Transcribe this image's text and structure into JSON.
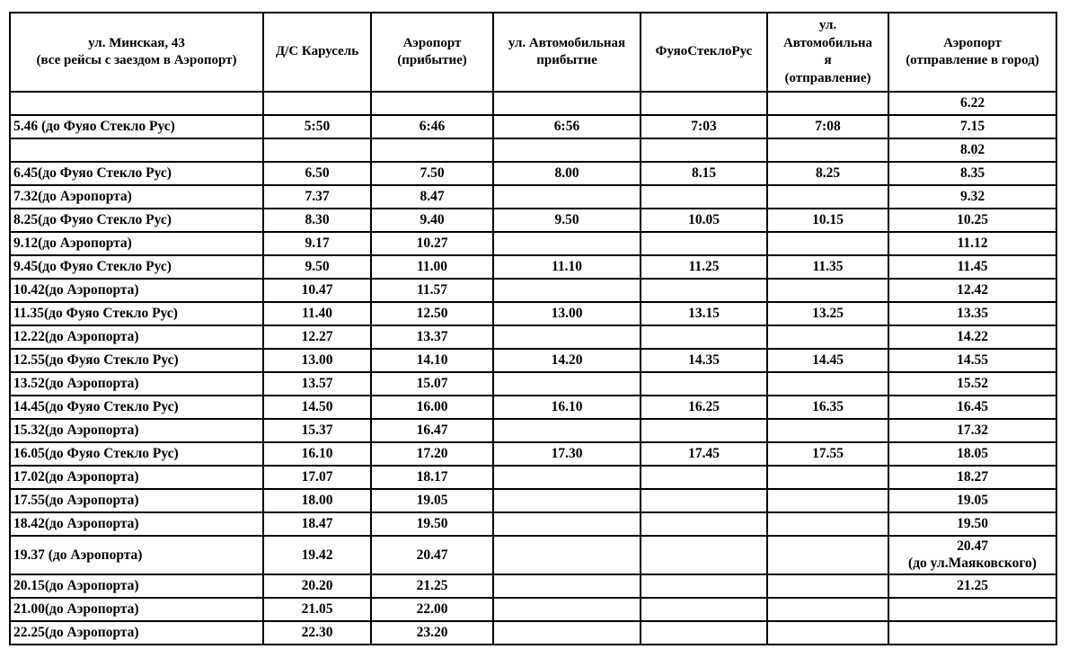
{
  "colors": {
    "background": "#ffffff",
    "border": "#000000",
    "text": "#000000"
  },
  "table": {
    "columns": [
      "ул. Минская, 43\n(все рейсы с заездом в Аэропорт)",
      "Д/С Карусель",
      "Аэропорт\n(прибытие)",
      "ул. Автомобильная\nприбытие",
      "ФуяоСтеклоРус",
      "ул.\nАвтомобильна\nя\n(отправление)",
      "Аэропорт\n(отправление в город)"
    ],
    "rows": [
      [
        "",
        "",
        "",
        "",
        "",
        "",
        "6.22"
      ],
      [
        "5.46 (до Фуяо Стекло Рус)",
        "5:50",
        "6:46",
        "6:56",
        "7:03",
        "7:08",
        "7.15"
      ],
      [
        "",
        "",
        "",
        "",
        "",
        "",
        "8.02"
      ],
      [
        "6.45(до Фуяо Стекло Рус)",
        "6.50",
        "7.50",
        "8.00",
        "8.15",
        "8.25",
        "8.35"
      ],
      [
        "7.32(до Аэропорта)",
        "7.37",
        "8.47",
        "",
        "",
        "",
        "9.32"
      ],
      [
        "8.25(до Фуяо Стекло Рус)",
        "8.30",
        "9.40",
        "9.50",
        "10.05",
        "10.15",
        "10.25"
      ],
      [
        "9.12(до Аэропорта)",
        "9.17",
        "10.27",
        "",
        "",
        "",
        "11.12"
      ],
      [
        "9.45(до Фуяо Стекло Рус)",
        "9.50",
        "11.00",
        "11.10",
        "11.25",
        "11.35",
        "11.45"
      ],
      [
        "10.42(до Аэропорта)",
        "10.47",
        "11.57",
        "",
        "",
        "",
        "12.42"
      ],
      [
        "11.35(до Фуяо Стекло Рус)",
        "11.40",
        "12.50",
        "13.00",
        "13.15",
        "13.25",
        "13.35"
      ],
      [
        "12.22(до Аэропорта)",
        "12.27",
        "13.37",
        "",
        "",
        "",
        "14.22"
      ],
      [
        "12.55(до Фуяо Стекло Рус)",
        "13.00",
        "14.10",
        "14.20",
        "14.35",
        "14.45",
        "14.55"
      ],
      [
        "13.52(до Аэропорта)",
        "13.57",
        "15.07",
        "",
        "",
        "",
        "15.52"
      ],
      [
        "14.45(до Фуяо Стекло Рус)",
        "14.50",
        "16.00",
        "16.10",
        "16.25",
        "16.35",
        "16.45"
      ],
      [
        "15.32(до Аэропорта)",
        "15.37",
        "16.47",
        "",
        "",
        "",
        "17.32"
      ],
      [
        "16.05(до Фуяо Стекло Рус)",
        "16.10",
        "17.20",
        "17.30",
        "17.45",
        "17.55",
        "18.05"
      ],
      [
        "17.02(до Аэропорта)",
        "17.07",
        "18.17",
        "",
        "",
        "",
        "18.27"
      ],
      [
        "17.55(до Аэропорта)",
        "18.00",
        "19.05",
        "",
        "",
        "",
        "19.05"
      ],
      [
        "18.42(до Аэропорта)",
        "18.47",
        "19.50",
        "",
        "",
        "",
        "19.50"
      ],
      [
        "19.37 (до Аэропорта)",
        "19.42",
        "20.47",
        "",
        "",
        "",
        "20.47\n(до ул.Маяковского)"
      ],
      [
        "20.15(до Аэропорта)",
        "20.20",
        "21.25",
        "",
        "",
        "",
        "21.25"
      ],
      [
        "21.00(до Аэропорта)",
        "21.05",
        "22.00",
        "",
        "",
        "",
        ""
      ],
      [
        "22.25(до Аэропорта)",
        "22.30",
        "23.20",
        "",
        "",
        "",
        ""
      ]
    ]
  }
}
